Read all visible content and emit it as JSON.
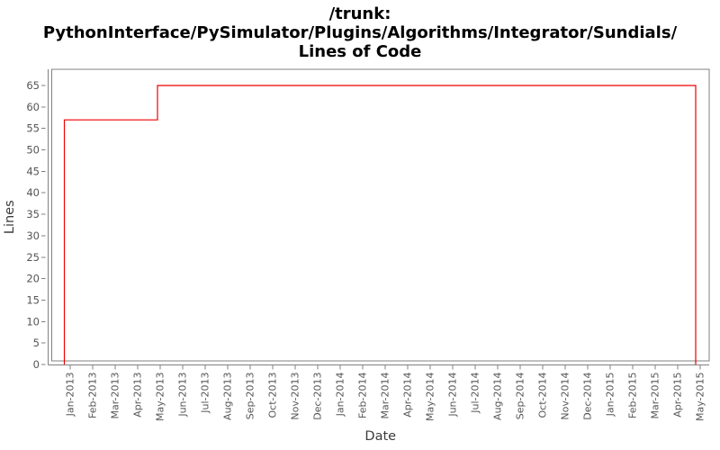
{
  "title": {
    "line1": "/trunk:",
    "line2": "PythonInterface/PySimulator/Plugins/Algorithms/Integrator/Sundials/",
    "line3": "Lines of Code"
  },
  "chart_data": {
    "type": "line",
    "step": true,
    "title": "/trunk: PythonInterface/PySimulator/Plugins/Algorithms/Integrator/Sundials/ Lines of Code",
    "xlabel": "Date",
    "ylabel": "Lines",
    "grid": false,
    "legend": "none",
    "x_tick_labels": [
      "Jan-2013",
      "Feb-2013",
      "Mar-2013",
      "Apr-2013",
      "May-2013",
      "Jun-2013",
      "Jul-2013",
      "Aug-2013",
      "Sep-2013",
      "Oct-2013",
      "Nov-2013",
      "Dec-2013",
      "Jan-2014",
      "Feb-2014",
      "Mar-2014",
      "Apr-2014",
      "May-2014",
      "Jun-2014",
      "Jul-2014",
      "Aug-2014",
      "Sep-2014",
      "Oct-2014",
      "Nov-2014",
      "Dec-2014",
      "Jan-2015",
      "Feb-2015",
      "Mar-2015",
      "Apr-2015",
      "May-2015"
    ],
    "y_ticks": [
      0,
      5,
      10,
      15,
      20,
      25,
      30,
      35,
      40,
      45,
      50,
      55,
      60,
      65
    ],
    "ylim": [
      0,
      68.8
    ],
    "xlim_months": [
      -0.82,
      28.4
    ],
    "series": [
      {
        "name": "Lines of Code",
        "color": "#ee0000",
        "points": [
          {
            "x": -0.26,
            "y": 0
          },
          {
            "x": -0.26,
            "y": 57
          },
          {
            "x": 3.88,
            "y": 57
          },
          {
            "x": 3.88,
            "y": 65
          },
          {
            "x": 27.8,
            "y": 65
          },
          {
            "x": 27.8,
            "y": 0
          }
        ],
        "steps": [
          {
            "approx_date": "2012-12-24",
            "value_after": 57
          },
          {
            "approx_date": "2013-04-27",
            "value_after": 65
          },
          {
            "approx_date": "2015-04-25",
            "value_after": 0
          }
        ]
      }
    ],
    "colors": {
      "frame": "#808080",
      "tick": "#808080",
      "tick_label": "#555555",
      "axis_label": "#3c3c3c",
      "title": "#000000",
      "background": "#ffffff"
    }
  }
}
